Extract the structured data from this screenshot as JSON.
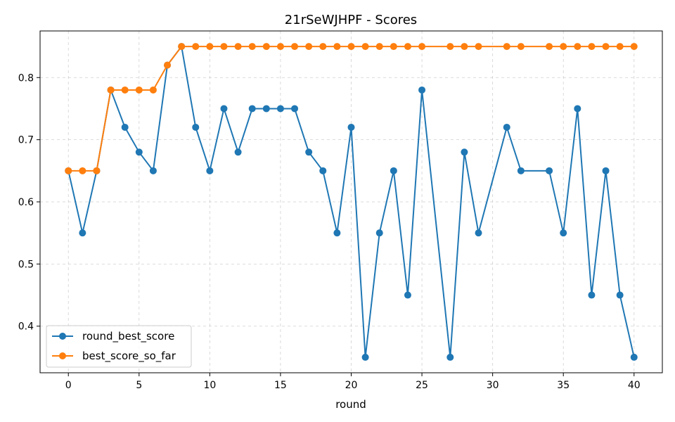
{
  "chart_data": {
    "type": "line",
    "title": "21rSeWJHPF - Scores",
    "xlabel": "round",
    "ylabel": "",
    "xlim": [
      -2,
      42
    ],
    "ylim": [
      0.325,
      0.875
    ],
    "xticks": [
      0,
      5,
      10,
      15,
      20,
      25,
      30,
      35,
      40
    ],
    "xtick_labels": [
      "0",
      "5",
      "10",
      "15",
      "20",
      "25",
      "30",
      "35",
      "40"
    ],
    "yticks": [
      0.4,
      0.5,
      0.6,
      0.7,
      0.8
    ],
    "ytick_labels": [
      "0.4",
      "0.5",
      "0.6",
      "0.7",
      "0.8"
    ],
    "grid": true,
    "legend_position": "lower-left",
    "series": [
      {
        "name": "round_best_score",
        "color": "#1f77b4",
        "x": [
          0,
          1,
          2,
          3,
          4,
          5,
          6,
          7,
          8,
          9,
          10,
          11,
          12,
          13,
          14,
          15,
          16,
          17,
          18,
          19,
          20,
          21,
          22,
          23,
          24,
          25,
          27,
          28,
          29,
          31,
          32,
          34,
          35,
          36,
          37,
          38,
          39,
          40
        ],
        "y": [
          0.65,
          0.55,
          0.65,
          0.78,
          0.72,
          0.68,
          0.65,
          0.82,
          0.85,
          0.72,
          0.65,
          0.75,
          0.68,
          0.75,
          0.75,
          0.75,
          0.75,
          0.68,
          0.65,
          0.55,
          0.72,
          0.35,
          0.55,
          0.65,
          0.45,
          0.78,
          0.35,
          0.68,
          0.55,
          0.72,
          0.65,
          0.65,
          0.55,
          0.75,
          0.45,
          0.65,
          0.45,
          0.35
        ]
      },
      {
        "name": "best_score_so_far",
        "color": "#ff7f0e",
        "x": [
          0,
          1,
          2,
          3,
          4,
          5,
          6,
          7,
          8,
          9,
          10,
          11,
          12,
          13,
          14,
          15,
          16,
          17,
          18,
          19,
          20,
          21,
          22,
          23,
          24,
          25,
          27,
          28,
          29,
          31,
          32,
          34,
          35,
          36,
          37,
          38,
          39,
          40
        ],
        "y": [
          0.65,
          0.65,
          0.65,
          0.78,
          0.78,
          0.78,
          0.78,
          0.82,
          0.85,
          0.85,
          0.85,
          0.85,
          0.85,
          0.85,
          0.85,
          0.85,
          0.85,
          0.85,
          0.85,
          0.85,
          0.85,
          0.85,
          0.85,
          0.85,
          0.85,
          0.85,
          0.85,
          0.85,
          0.85,
          0.85,
          0.85,
          0.85,
          0.85,
          0.85,
          0.85,
          0.85,
          0.85,
          0.85
        ]
      }
    ]
  }
}
